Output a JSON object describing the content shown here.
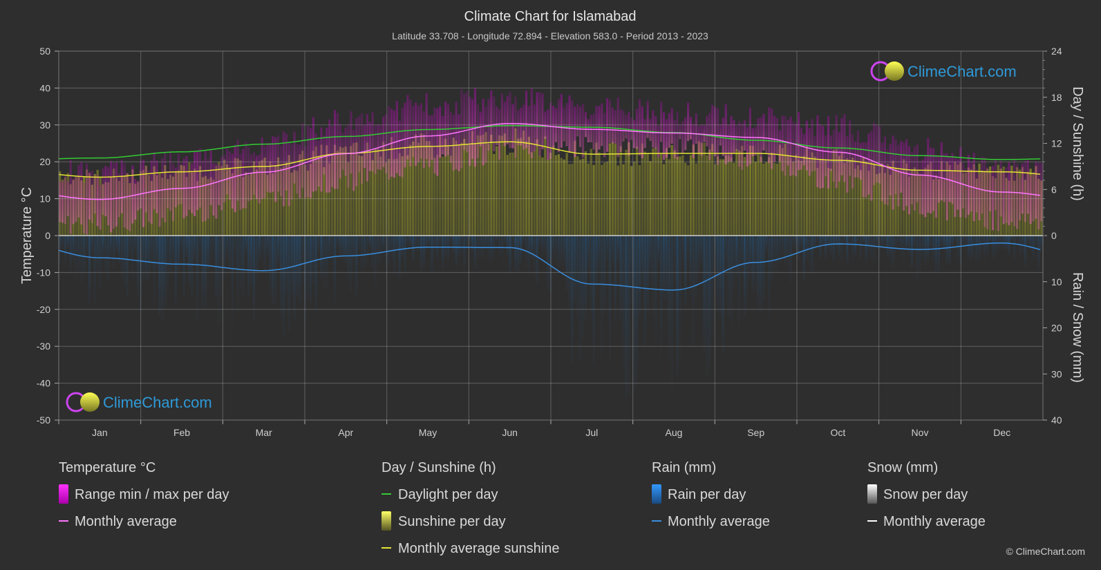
{
  "header": {
    "title": "Climate Chart for Islamabad",
    "subtitle": "Latitude 33.708 - Longitude 72.894 - Elevation 583.0 - Period 2013 - 2023"
  },
  "watermark": {
    "brand": "ClimeChart.com"
  },
  "copyright": "© ClimeChart.com",
  "chart_data": {
    "type": "line",
    "months": [
      "Jan",
      "Feb",
      "Mar",
      "Apr",
      "May",
      "Jun",
      "Jul",
      "Aug",
      "Sep",
      "Oct",
      "Nov",
      "Dec"
    ],
    "axes": {
      "left": {
        "label": "Temperature °C",
        "range": [
          -50,
          50
        ],
        "ticks": [
          50,
          40,
          30,
          20,
          10,
          0,
          -10,
          -20,
          -30,
          -40,
          -50
        ]
      },
      "right_top": {
        "label": "Day / Sunshine (h)",
        "range": [
          0,
          24
        ],
        "ticks": [
          24,
          18,
          12,
          6,
          0
        ]
      },
      "right_bottom": {
        "label": "Rain / Snow (mm)",
        "range": [
          0,
          40
        ],
        "ticks": [
          10,
          20,
          30,
          40
        ]
      }
    },
    "grid": true,
    "series": {
      "temp_monthly_avg": [
        9.8,
        12.8,
        17.2,
        22.2,
        27.0,
        30.4,
        28.8,
        27.8,
        26.6,
        22.6,
        16.4,
        11.8
      ],
      "temp_max_avg": [
        17,
        20,
        24.5,
        31,
        35.5,
        37.5,
        34.5,
        33,
        32,
        29.5,
        23.5,
        19
      ],
      "temp_min_avg": [
        3,
        6,
        10,
        15,
        19,
        23,
        24,
        23.5,
        20.5,
        14.5,
        8,
        4
      ],
      "daylight_hours": [
        10.1,
        10.9,
        11.9,
        12.9,
        13.8,
        14.3,
        14.1,
        13.4,
        12.4,
        11.4,
        10.4,
        9.9
      ],
      "sunshine_hours": [
        7.6,
        8.3,
        9.0,
        10.7,
        11.6,
        12.2,
        10.6,
        10.7,
        10.7,
        9.8,
        8.5,
        8.3
      ],
      "rain_monthly_avg_mm": [
        4.8,
        6.2,
        7.6,
        4.4,
        2.5,
        2.6,
        10.5,
        11.8,
        5.8,
        1.8,
        3.0,
        1.6
      ]
    }
  },
  "legend": {
    "temperature": {
      "title": "Temperature °C",
      "items": [
        "Range min / max per day",
        "Monthly average"
      ]
    },
    "sunshine": {
      "title": "Day / Sunshine (h)",
      "items": [
        "Daylight per day",
        "Sunshine per day",
        "Monthly average sunshine"
      ]
    },
    "rain": {
      "title": "Rain (mm)",
      "items": [
        "Rain per day",
        "Monthly average"
      ]
    },
    "snow": {
      "title": "Snow (mm)",
      "items": [
        "Snow per day",
        "Monthly average"
      ]
    }
  },
  "colors": {
    "background": "#2e2e2e",
    "temp_range": "#e000e0",
    "temp_avg": "#ff77ff",
    "daylight": "#33cc33",
    "sunshine_fill": "#b3b32d",
    "sunshine_avg": "#e6e633",
    "rain": "#2a7fd0",
    "rain_avg": "#3a8fe0",
    "snow": "#ffffff",
    "brand": "#2e9ad8"
  }
}
